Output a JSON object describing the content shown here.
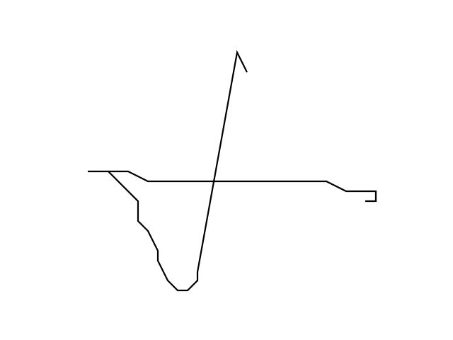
{
  "drawing": {
    "background_color": "#ffffff",
    "stroke_color": "#000000",
    "stroke_count": 1
  }
}
